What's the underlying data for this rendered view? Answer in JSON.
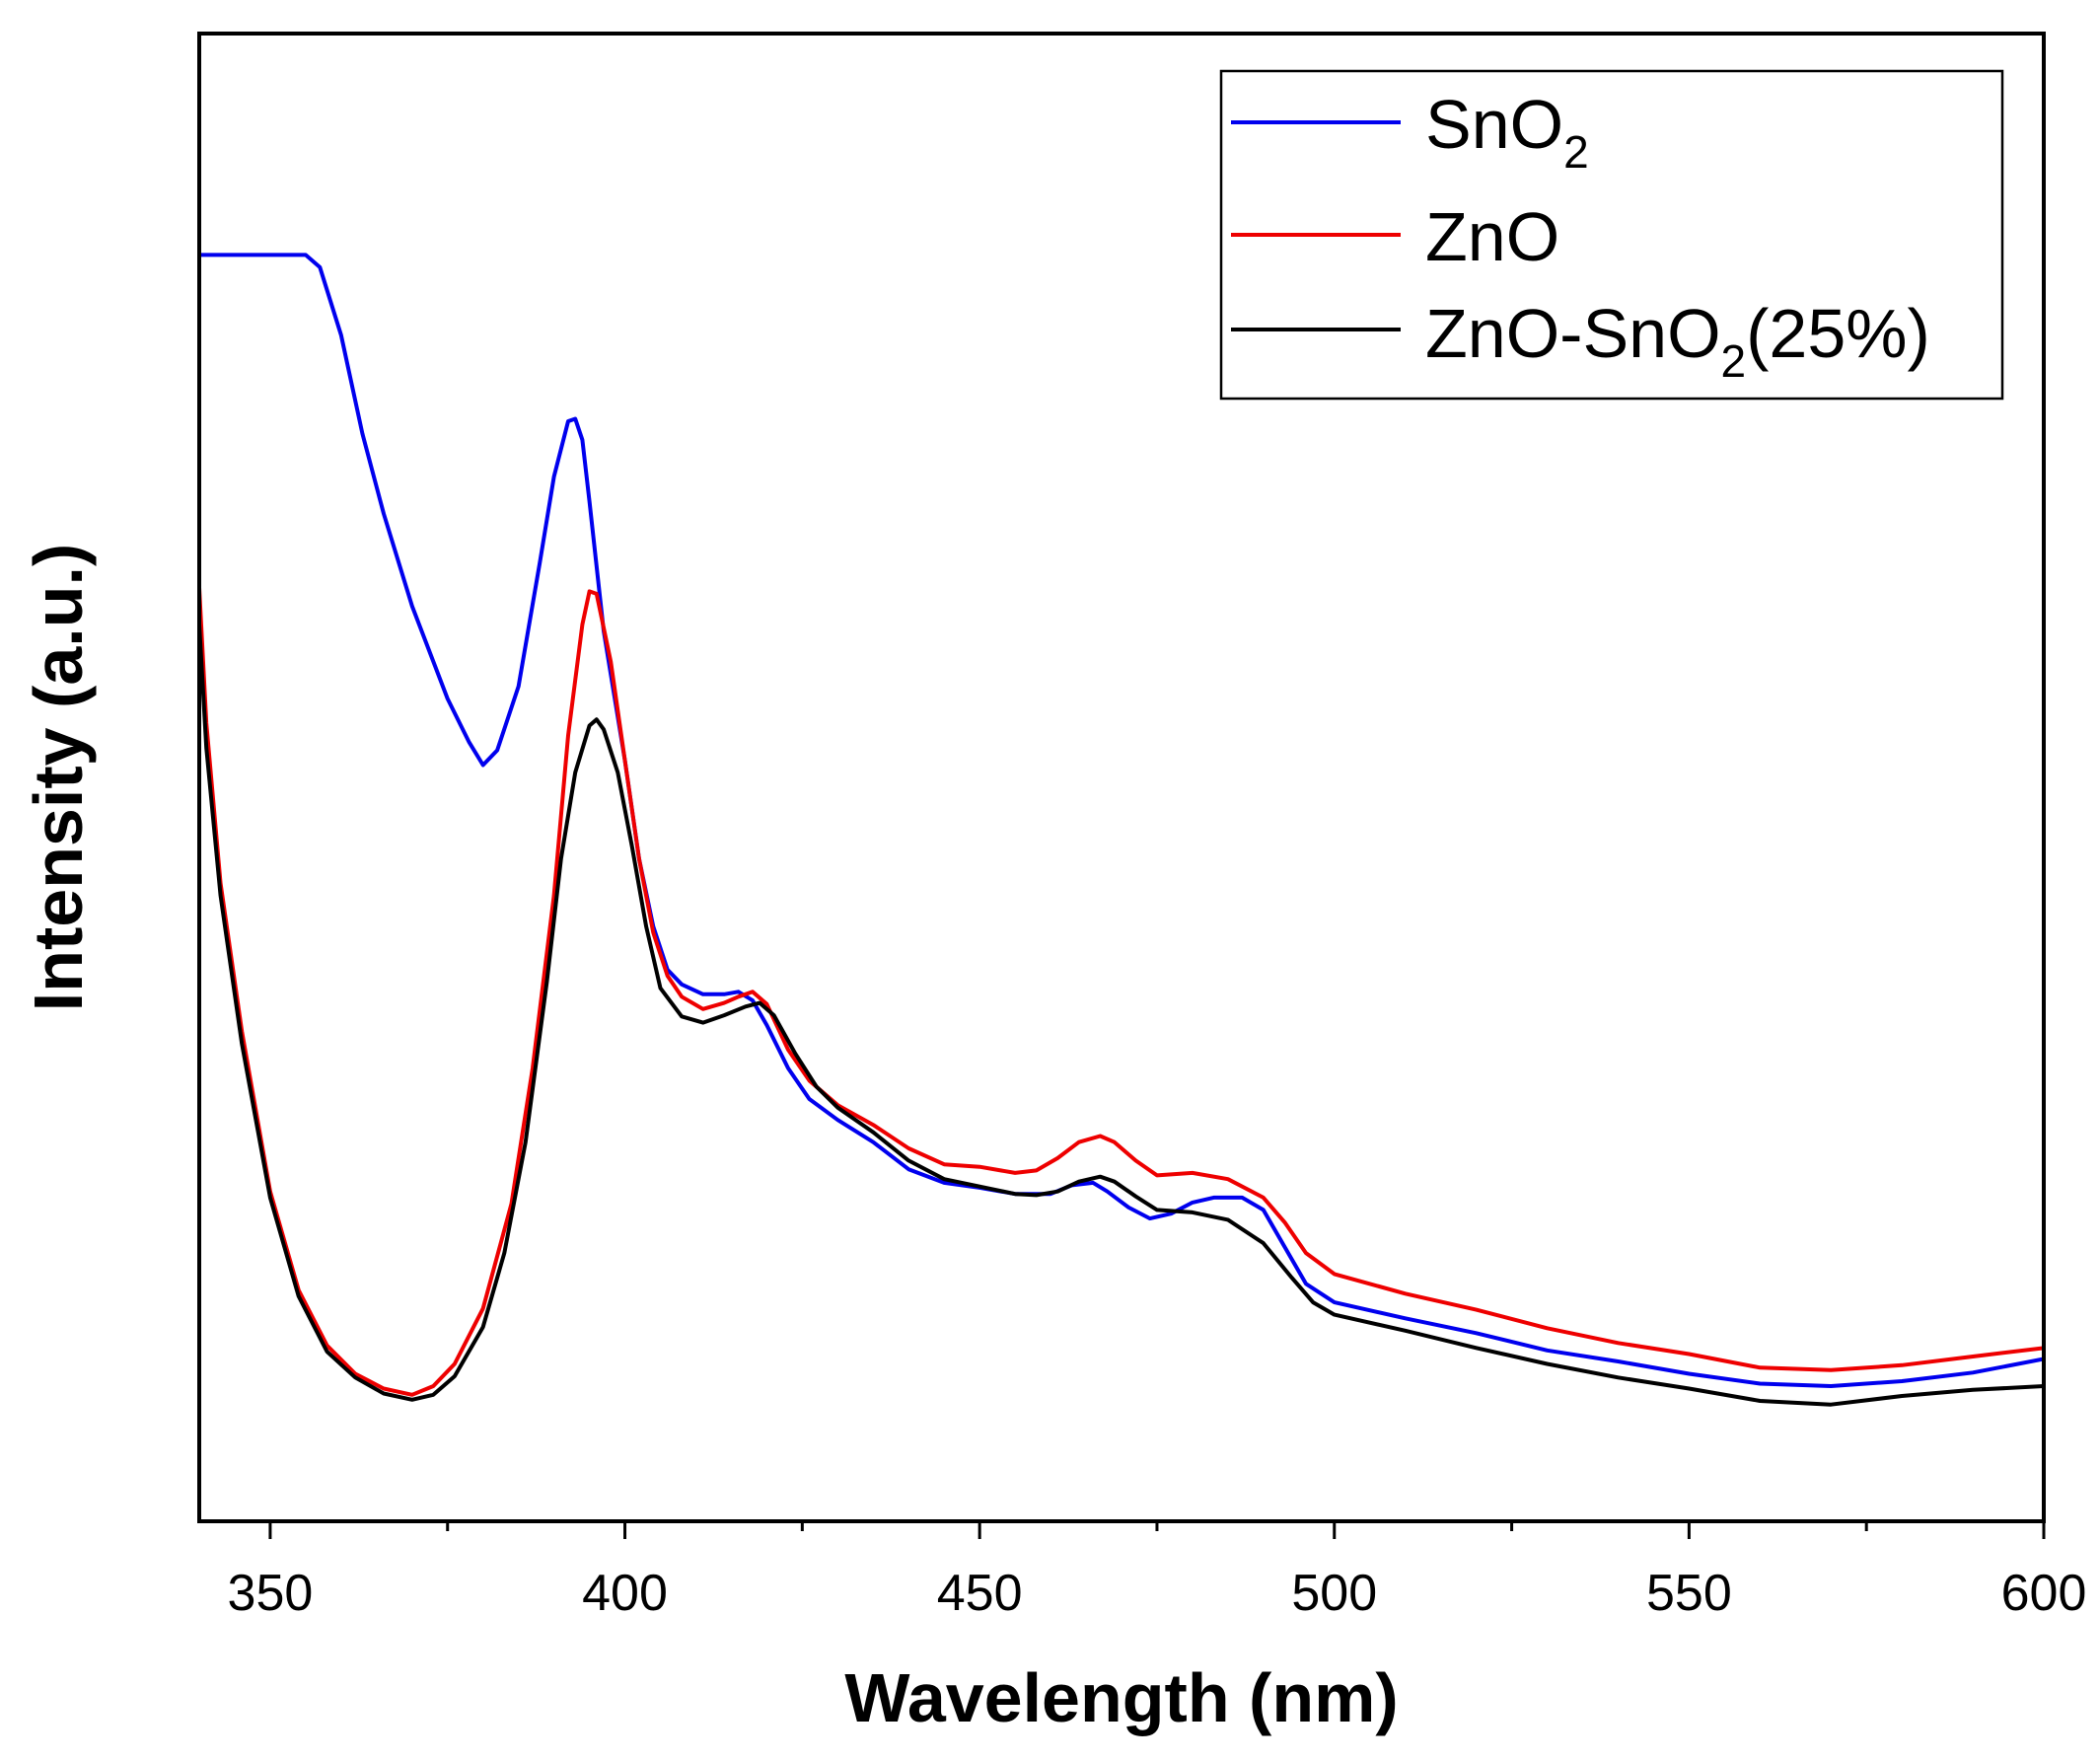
{
  "chart_data": {
    "type": "line",
    "title": "",
    "xlabel": "Wavelength (nm)",
    "ylabel": "Intensity (a.u.)",
    "xlim": [
      340,
      600
    ],
    "ylim": [
      0,
      100
    ],
    "xticks": [
      350,
      400,
      450,
      500,
      550,
      600
    ],
    "xtick_labels": [
      "350",
      "400",
      "450",
      "500",
      "550",
      "600"
    ],
    "grid": false,
    "legend_position": "top-right",
    "series": [
      {
        "name": "SnO2",
        "legend_main": "SnO",
        "legend_sub": "2",
        "color": "#0000ee",
        "points": [
          [
            340,
            93.0
          ],
          [
            350,
            93.0
          ],
          [
            355,
            93.0
          ],
          [
            357,
            92.0
          ],
          [
            360,
            86.5
          ],
          [
            363,
            78.5
          ],
          [
            366,
            72.0
          ],
          [
            370,
            64.5
          ],
          [
            375,
            57.0
          ],
          [
            378,
            53.5
          ],
          [
            380,
            51.6
          ],
          [
            382,
            52.8
          ],
          [
            385,
            58.0
          ],
          [
            388,
            68.0
          ],
          [
            390,
            75.0
          ],
          [
            392,
            79.5
          ],
          [
            393,
            79.7
          ],
          [
            394,
            78.0
          ],
          [
            395,
            73.0
          ],
          [
            397,
            62.5
          ],
          [
            400,
            52.0
          ],
          [
            402,
            44.0
          ],
          [
            404,
            38.5
          ],
          [
            406,
            35.0
          ],
          [
            408,
            33.8
          ],
          [
            411,
            33.0
          ],
          [
            414,
            33.0
          ],
          [
            416,
            33.2
          ],
          [
            418,
            32.5
          ],
          [
            420,
            30.5
          ],
          [
            423,
            27.0
          ],
          [
            426,
            24.5
          ],
          [
            430,
            22.8
          ],
          [
            435,
            21.0
          ],
          [
            440,
            18.8
          ],
          [
            445,
            17.7
          ],
          [
            450,
            17.3
          ],
          [
            455,
            16.8
          ],
          [
            460,
            16.8
          ],
          [
            463,
            17.5
          ],
          [
            466,
            17.7
          ],
          [
            468,
            17.0
          ],
          [
            471,
            15.7
          ],
          [
            474,
            14.8
          ],
          [
            477,
            15.2
          ],
          [
            480,
            16.1
          ],
          [
            483,
            16.5
          ],
          [
            487,
            16.5
          ],
          [
            490,
            15.5
          ],
          [
            493,
            12.5
          ],
          [
            496,
            9.5
          ],
          [
            500,
            8.0
          ],
          [
            510,
            6.7
          ],
          [
            520,
            5.5
          ],
          [
            530,
            4.1
          ],
          [
            540,
            3.2
          ],
          [
            550,
            2.2
          ],
          [
            560,
            1.4
          ],
          [
            570,
            1.2
          ],
          [
            580,
            1.6
          ],
          [
            590,
            2.3
          ],
          [
            600,
            3.4
          ]
        ]
      },
      {
        "name": "ZnO",
        "legend_main": "ZnO",
        "legend_sub": "",
        "color": "#ee0000",
        "points": [
          [
            340,
            66.0
          ],
          [
            341,
            55.0
          ],
          [
            343,
            42.0
          ],
          [
            346,
            30.0
          ],
          [
            350,
            17.0
          ],
          [
            354,
            9.0
          ],
          [
            358,
            4.5
          ],
          [
            362,
            2.2
          ],
          [
            366,
            1.0
          ],
          [
            370,
            0.5
          ],
          [
            373,
            1.2
          ],
          [
            376,
            3.0
          ],
          [
            380,
            7.5
          ],
          [
            384,
            16.0
          ],
          [
            387,
            27.0
          ],
          [
            390,
            41.0
          ],
          [
            392,
            54.0
          ],
          [
            394,
            63.0
          ],
          [
            395,
            65.7
          ],
          [
            396,
            65.5
          ],
          [
            398,
            60.0
          ],
          [
            400,
            52.0
          ],
          [
            402,
            44.0
          ],
          [
            404,
            38.0
          ],
          [
            406,
            34.5
          ],
          [
            408,
            32.8
          ],
          [
            411,
            31.8
          ],
          [
            414,
            32.3
          ],
          [
            416,
            32.8
          ],
          [
            418,
            33.2
          ],
          [
            420,
            32.2
          ],
          [
            423,
            28.5
          ],
          [
            426,
            26.0
          ],
          [
            430,
            24.0
          ],
          [
            435,
            22.4
          ],
          [
            440,
            20.5
          ],
          [
            445,
            19.2
          ],
          [
            450,
            19.0
          ],
          [
            455,
            18.5
          ],
          [
            458,
            18.7
          ],
          [
            461,
            19.7
          ],
          [
            464,
            21.0
          ],
          [
            467,
            21.5
          ],
          [
            469,
            21.0
          ],
          [
            472,
            19.5
          ],
          [
            475,
            18.3
          ],
          [
            480,
            18.5
          ],
          [
            485,
            18.0
          ],
          [
            490,
            16.5
          ],
          [
            493,
            14.5
          ],
          [
            496,
            12.0
          ],
          [
            500,
            10.3
          ],
          [
            510,
            8.7
          ],
          [
            520,
            7.4
          ],
          [
            530,
            5.9
          ],
          [
            540,
            4.7
          ],
          [
            550,
            3.8
          ],
          [
            560,
            2.7
          ],
          [
            570,
            2.5
          ],
          [
            580,
            2.9
          ],
          [
            590,
            3.6
          ],
          [
            600,
            4.3
          ]
        ]
      },
      {
        "name": "ZnO-SnO2(25%)",
        "legend_main": "ZnO-SnO",
        "legend_sub": "2",
        "legend_suffix": "(25%)",
        "color": "#000000",
        "points": [
          [
            340,
            63.0
          ],
          [
            341,
            53.0
          ],
          [
            343,
            41.0
          ],
          [
            346,
            29.0
          ],
          [
            350,
            16.5
          ],
          [
            354,
            8.5
          ],
          [
            358,
            4.0
          ],
          [
            362,
            1.9
          ],
          [
            366,
            0.6
          ],
          [
            370,
            0.1
          ],
          [
            373,
            0.5
          ],
          [
            376,
            2.0
          ],
          [
            380,
            6.0
          ],
          [
            383,
            12.0
          ],
          [
            386,
            21.0
          ],
          [
            389,
            34.0
          ],
          [
            391,
            44.0
          ],
          [
            393,
            51.0
          ],
          [
            395,
            54.8
          ],
          [
            396,
            55.3
          ],
          [
            397,
            54.5
          ],
          [
            399,
            51.0
          ],
          [
            401,
            45.0
          ],
          [
            403,
            38.5
          ],
          [
            405,
            33.5
          ],
          [
            408,
            31.2
          ],
          [
            411,
            30.7
          ],
          [
            414,
            31.3
          ],
          [
            417,
            32.0
          ],
          [
            419,
            32.3
          ],
          [
            421,
            31.3
          ],
          [
            424,
            28.2
          ],
          [
            427,
            25.5
          ],
          [
            430,
            23.8
          ],
          [
            435,
            21.8
          ],
          [
            440,
            19.5
          ],
          [
            445,
            18.0
          ],
          [
            450,
            17.4
          ],
          [
            455,
            16.8
          ],
          [
            458,
            16.7
          ],
          [
            461,
            17.0
          ],
          [
            464,
            17.8
          ],
          [
            467,
            18.2
          ],
          [
            469,
            17.8
          ],
          [
            472,
            16.6
          ],
          [
            475,
            15.5
          ],
          [
            480,
            15.3
          ],
          [
            485,
            14.7
          ],
          [
            490,
            12.8
          ],
          [
            494,
            10.0
          ],
          [
            497,
            8.0
          ],
          [
            500,
            7.0
          ],
          [
            510,
            5.7
          ],
          [
            520,
            4.3
          ],
          [
            530,
            3.0
          ],
          [
            540,
            1.9
          ],
          [
            550,
            1.0
          ],
          [
            560,
            0.0
          ],
          [
            570,
            -0.3
          ],
          [
            580,
            0.4
          ],
          [
            590,
            0.9
          ],
          [
            600,
            1.2
          ]
        ]
      }
    ]
  }
}
